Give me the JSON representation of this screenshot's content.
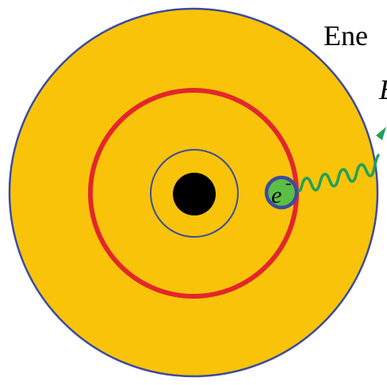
{
  "labels": {
    "energy_line1": "Ene",
    "energy_line2": "E",
    "electron_symbol": "e",
    "electron_charge": "-"
  },
  "colors": {
    "atom_fill": "#F9C30A",
    "atom_outline": "#3B4BA0",
    "outer_orbit": "#E3262A",
    "inner_orbit": "#3B4BA0",
    "nucleus": "#000000",
    "electron_fill": "#5CBF45",
    "electron_outline": "#3B4BA0",
    "photon_wave": "#1FA15A"
  },
  "icons": {
    "photon": "wavy-arrow-icon"
  }
}
